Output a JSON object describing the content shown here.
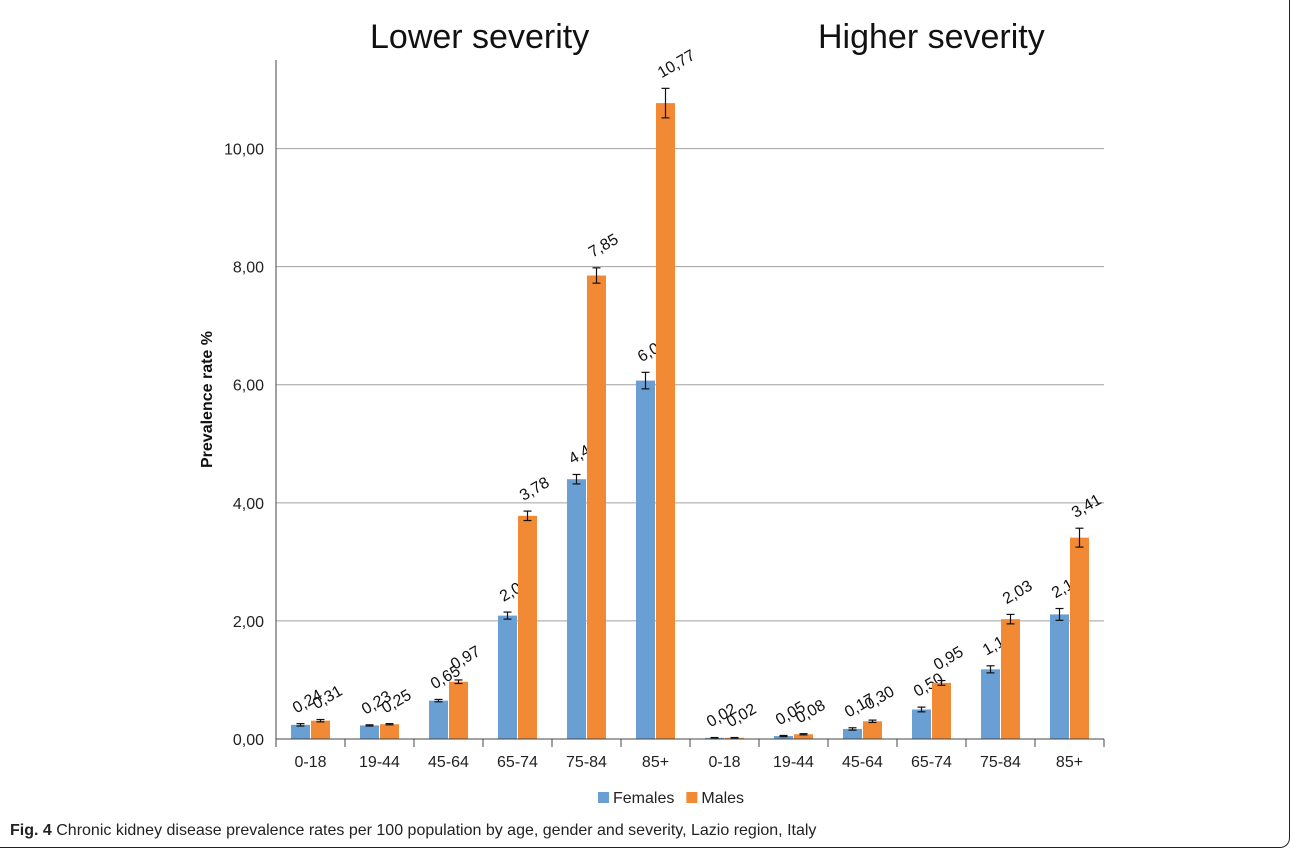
{
  "caption": {
    "label": "Fig. 4",
    "text": "Chronic kidney disease prevalence rates per 100 population by age, gender and severity, Lazio region, Italy"
  },
  "chart_data": {
    "type": "bar",
    "panels": [
      "Lower severity",
      "Higher severity"
    ],
    "categories": [
      "0-18",
      "19-44",
      "45-64",
      "65-74",
      "75-84",
      "85+",
      "0-18",
      "19-44",
      "45-64",
      "65-74",
      "75-84",
      "85+"
    ],
    "ylabel": "Prevalence rate %",
    "xlabel": "",
    "ylim": [
      0,
      11.5
    ],
    "yticks": [
      "0,00",
      "2,00",
      "4,00",
      "6,00",
      "8,00",
      "10,00"
    ],
    "ytick_values": [
      0,
      2,
      4,
      6,
      8,
      10
    ],
    "grid": true,
    "legend_position": "bottom",
    "series": [
      {
        "name": "Females",
        "color": "#6a9fd4",
        "values": [
          0.24,
          0.23,
          0.65,
          2.09,
          4.4,
          6.07,
          0.02,
          0.05,
          0.17,
          0.5,
          1.18,
          2.11
        ],
        "labels": [
          "0,24",
          "0,23",
          "0,65",
          "2,09",
          "4,40",
          "6,07",
          "0,02",
          "0,05",
          "0,17",
          "0,50",
          "1,18",
          "2,11"
        ],
        "errors": [
          0.02,
          0.01,
          0.02,
          0.06,
          0.08,
          0.14,
          0.005,
          0.01,
          0.02,
          0.04,
          0.06,
          0.1
        ]
      },
      {
        "name": "Males",
        "color": "#f28a35",
        "values": [
          0.31,
          0.25,
          0.97,
          3.78,
          7.85,
          10.77,
          0.02,
          0.08,
          0.3,
          0.95,
          2.03,
          3.41
        ],
        "labels": [
          "0,31",
          "0,25",
          "0,97",
          "3,78",
          "7,85",
          "10,77",
          "0,02",
          "0,08",
          "0,30",
          "0,95",
          "2,03",
          "3,41"
        ],
        "errors": [
          0.02,
          0.01,
          0.03,
          0.08,
          0.13,
          0.25,
          0.005,
          0.01,
          0.02,
          0.04,
          0.08,
          0.16
        ]
      }
    ]
  }
}
